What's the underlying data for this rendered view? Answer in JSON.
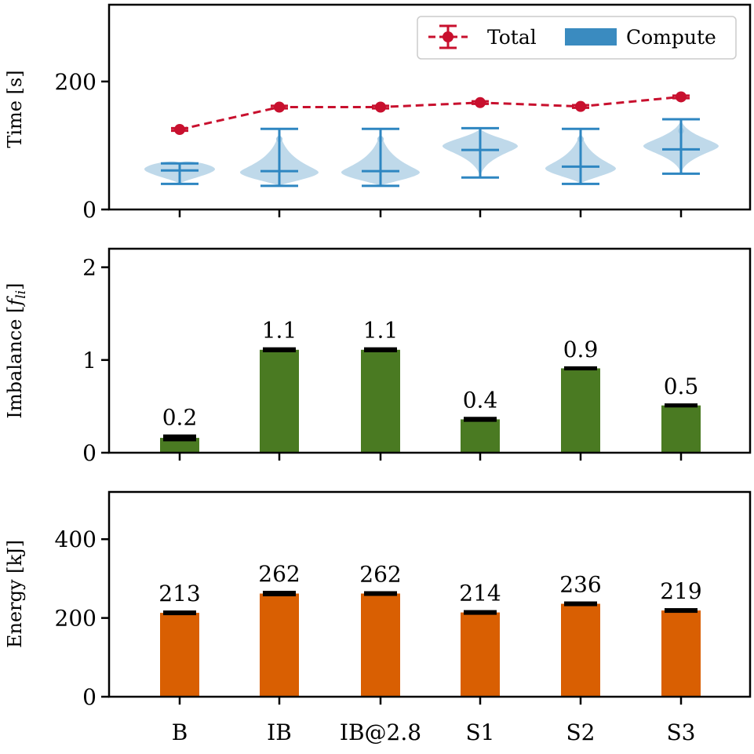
{
  "chart_data": [
    {
      "type": "line",
      "panel": "time",
      "categories": [
        "B",
        "IB",
        "IB@2.8",
        "S1",
        "S2",
        "S3"
      ],
      "ylabel": "Time [s]",
      "ylim": [
        0,
        320
      ],
      "yticks": [
        0,
        200
      ],
      "legend_position": "top-right",
      "series": [
        {
          "name": "Total",
          "kind": "line-errorbar",
          "color": "#c8102e",
          "values": [
            125,
            160,
            160,
            167,
            161,
            176
          ],
          "err": [
            2,
            2,
            2,
            2,
            2,
            2
          ]
        },
        {
          "name": "Compute",
          "kind": "violin",
          "color": "#2e86c1",
          "fill": "#a9cce3",
          "min": [
            40,
            37,
            37,
            50,
            40,
            56
          ],
          "max": [
            72,
            126,
            126,
            127,
            126,
            141
          ],
          "median": [
            61,
            60,
            60,
            93,
            67,
            94
          ],
          "mode": [
            63,
            58,
            58,
            99,
            64,
            99
          ],
          "outlier": [
            null,
            110,
            110,
            null,
            110,
            123
          ]
        }
      ]
    },
    {
      "type": "bar",
      "panel": "imbalance",
      "categories": [
        "B",
        "IB",
        "IB@2.8",
        "S1",
        "S2",
        "S3"
      ],
      "ylabel": "Imbalance [",
      "ylabel_symbol": "f",
      "ylabel_subscript": "li",
      "ylabel_close": "]",
      "ylim": [
        0,
        2.2
      ],
      "yticks": [
        0,
        1,
        2
      ],
      "color": "#4a7a22",
      "values": [
        0.16,
        1.11,
        1.11,
        0.36,
        0.91,
        0.51
      ],
      "err": [
        0.02,
        0.01,
        0.01,
        0.01,
        0.005,
        0.005
      ],
      "labels": [
        "0.2",
        "1.1",
        "1.1",
        "0.4",
        "0.9",
        "0.5"
      ]
    },
    {
      "type": "bar",
      "panel": "energy",
      "categories": [
        "B",
        "IB",
        "IB@2.8",
        "S1",
        "S2",
        "S3"
      ],
      "ylabel": "Energy [kJ]",
      "ylim": [
        0,
        520
      ],
      "yticks": [
        0,
        200,
        400
      ],
      "color": "#d95f02",
      "values": [
        213,
        262,
        262,
        214,
        236,
        219
      ],
      "err": [
        2,
        3,
        2,
        2,
        2,
        2
      ],
      "labels": [
        "213",
        "262",
        "262",
        "214",
        "236",
        "219"
      ]
    }
  ]
}
